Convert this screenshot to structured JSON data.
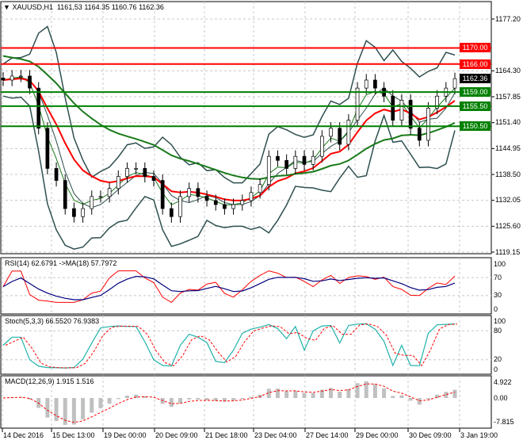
{
  "header": {
    "symbol": "XAUUSD,H1",
    "ohlc": "1161,53 1164.35 1160.76 1162.36"
  },
  "price_axis": [
    "1177.20",
    "1164.30",
    "1157.85",
    "1151.40",
    "1144.95",
    "1138.50",
    "1132.05",
    "1125.60",
    "1119.15"
  ],
  "current_price": {
    "value": "1162.36",
    "color": "#000000"
  },
  "levels": [
    {
      "value": 1170.0,
      "label": "1170.00",
      "color": "#ff0000"
    },
    {
      "value": 1166.0,
      "label": "1166.00",
      "color": "#ff0000"
    },
    {
      "value": 1159.0,
      "label": "1159.00",
      "color": "#008000"
    },
    {
      "value": 1155.5,
      "label": "1155.50",
      "color": "#008000"
    },
    {
      "value": 1150.5,
      "label": "1150.50",
      "color": "#008000"
    }
  ],
  "rsi": {
    "label": "RSI(14) 62.6791  ->MA(18) 57.7972",
    "axis": [
      "100",
      "70",
      "30",
      "0"
    ]
  },
  "stoch": {
    "label": "Stoch(5,3,3) 66.5520 76.9383",
    "axis": [
      "100",
      "80",
      "20",
      "0"
    ]
  },
  "macd": {
    "label": "MACD(12,26,9) 1.915 1.516",
    "axis": [
      "4.922",
      "0.00",
      "-7.815"
    ]
  },
  "time_axis": [
    "14 Dec 2016",
    "15 Dec 13:00",
    "19 Dec 00:00",
    "20 Dec 09:00",
    "21 Dec 18:00",
    "23 Dec 04:00",
    "27 Dec 14:00",
    "29 Dec 00:00",
    "30 Dec 09:00",
    "3 Jan 19:00"
  ],
  "chart_data": {
    "type": "candlestick",
    "symbol": "XAUUSD",
    "timeframe": "H1",
    "ylim": [
      1119.15,
      1177.2
    ],
    "closes": [
      1162,
      1163,
      1163,
      1160,
      1150,
      1140,
      1137,
      1130,
      1128,
      1130,
      1133,
      1133,
      1135,
      1138,
      1140,
      1140,
      1138,
      1137,
      1130,
      1128,
      1133,
      1135,
      1133,
      1132,
      1131,
      1130,
      1131,
      1132,
      1134,
      1136,
      1143,
      1142,
      1140,
      1143,
      1141,
      1143,
      1148,
      1150,
      1146,
      1152,
      1160,
      1162,
      1160,
      1158,
      1152,
      1157,
      1150,
      1147,
      1155,
      1158,
      1160,
      1162.36
    ],
    "colors": {
      "ma_red": "#ff0000",
      "ma_green": "#1a7a1a",
      "bands": "#2f4f4f",
      "rsi": "#ff0000",
      "rsi_ma": "#000080",
      "stoch_main": "#20b2aa",
      "stoch_signal": "#ff0000",
      "macd_hist": "#c0c0c0",
      "macd_signal": "#ff0000"
    }
  }
}
